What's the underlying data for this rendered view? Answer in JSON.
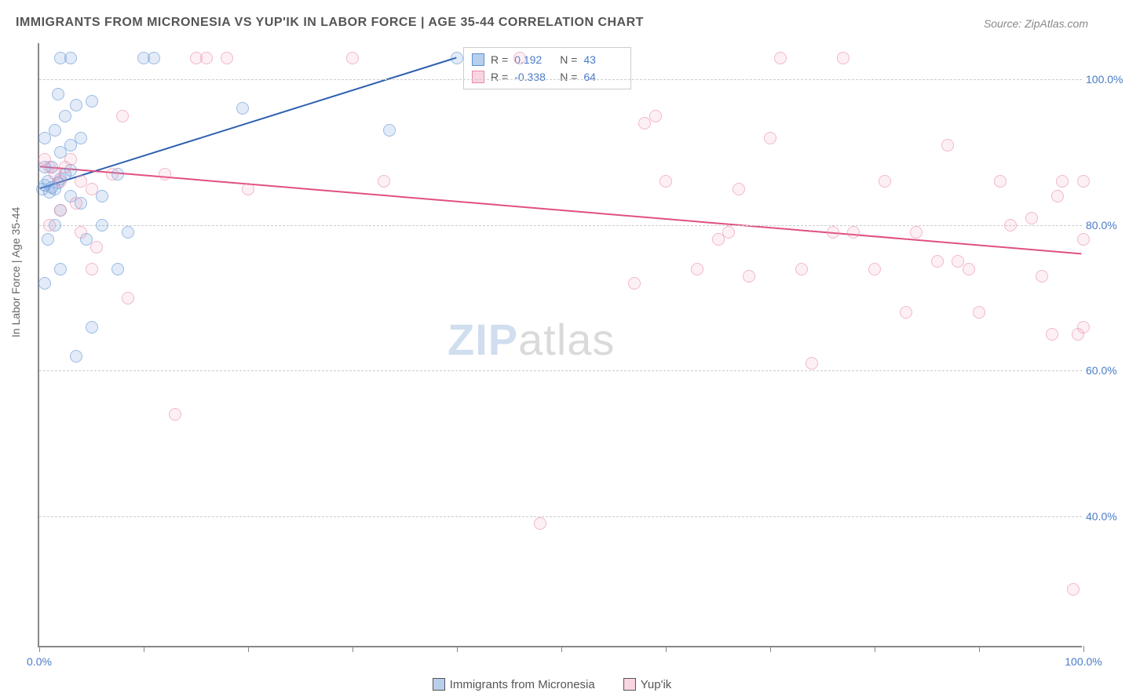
{
  "title": "IMMIGRANTS FROM MICRONESIA VS YUP'IK IN LABOR FORCE | AGE 35-44 CORRELATION CHART",
  "source": "Source: ZipAtlas.com",
  "ylabel": "In Labor Force | Age 35-44",
  "watermark": {
    "zip": "ZIP",
    "atlas": "atlas"
  },
  "chart": {
    "type": "scatter",
    "xlim": [
      0,
      100
    ],
    "ylim": [
      22,
      105
    ],
    "xticks": [
      0,
      10,
      20,
      30,
      40,
      50,
      60,
      70,
      80,
      90,
      100
    ],
    "xtick_labels_shown": {
      "0": "0.0%",
      "100": "100.0%"
    },
    "yticks": [
      40,
      60,
      80,
      100
    ],
    "ytick_labels": {
      "40": "40.0%",
      "60": "60.0%",
      "80": "80.0%",
      "100": "100.0%"
    },
    "grid_color": "#cccccc",
    "background_color": "#ffffff",
    "axis_color": "#888888",
    "tick_label_color": "#4a7bc8"
  },
  "series": [
    {
      "name": "Immigrants from Micronesia",
      "color_fill": "rgba(114,159,217,0.35)",
      "color_stroke": "#5a8fd6",
      "marker_radius": 8,
      "R": "0.192",
      "N": "43",
      "trend": {
        "x1": 0,
        "y1": 85,
        "x2": 40,
        "y2": 103,
        "color": "#2e5fb0",
        "width": 2
      },
      "points": [
        [
          0.3,
          85
        ],
        [
          0.5,
          85.5
        ],
        [
          0.8,
          86
        ],
        [
          1.0,
          84.5
        ],
        [
          1.2,
          85.2
        ],
        [
          1.5,
          85
        ],
        [
          1.8,
          85.8
        ],
        [
          2.0,
          86.3
        ],
        [
          0.5,
          88
        ],
        [
          1.2,
          88
        ],
        [
          2.5,
          87
        ],
        [
          3.0,
          87.5
        ],
        [
          2.0,
          90
        ],
        [
          3.0,
          91
        ],
        [
          4.0,
          92
        ],
        [
          1.5,
          93
        ],
        [
          2.5,
          95
        ],
        [
          3.5,
          96.5
        ],
        [
          5.0,
          97
        ],
        [
          1.8,
          98
        ],
        [
          3.0,
          103
        ],
        [
          2.0,
          103
        ],
        [
          10.0,
          103
        ],
        [
          11.0,
          103
        ],
        [
          19.5,
          96
        ],
        [
          2.0,
          82
        ],
        [
          3.0,
          84
        ],
        [
          4.0,
          83
        ],
        [
          6.0,
          84
        ],
        [
          7.5,
          87
        ],
        [
          8.5,
          79
        ],
        [
          0.5,
          92
        ],
        [
          1.5,
          80
        ],
        [
          0.8,
          78
        ],
        [
          2.0,
          74
        ],
        [
          0.5,
          72
        ],
        [
          4.5,
          78
        ],
        [
          6.0,
          80
        ],
        [
          7.5,
          74
        ],
        [
          5.0,
          66
        ],
        [
          3.5,
          62
        ],
        [
          33.5,
          93
        ],
        [
          40.0,
          103
        ]
      ]
    },
    {
      "name": "Yup'ik",
      "color_fill": "rgba(240,150,180,0.25)",
      "color_stroke": "#e88aa8",
      "marker_radius": 8,
      "R": "-0.338",
      "N": "64",
      "trend": {
        "x1": 0,
        "y1": 88,
        "x2": 100,
        "y2": 76,
        "color": "#e05080",
        "width": 2
      },
      "points": [
        [
          0.5,
          89
        ],
        [
          1.0,
          88
        ],
        [
          1.5,
          87
        ],
        [
          2.0,
          86
        ],
        [
          2.5,
          88
        ],
        [
          3.0,
          89
        ],
        [
          4.0,
          86
        ],
        [
          5.0,
          85
        ],
        [
          2.0,
          82
        ],
        [
          3.5,
          83
        ],
        [
          1.0,
          80
        ],
        [
          4.0,
          79
        ],
        [
          5.5,
          77
        ],
        [
          7.0,
          87
        ],
        [
          8.0,
          95
        ],
        [
          12.0,
          87
        ],
        [
          15.0,
          103
        ],
        [
          16.0,
          103
        ],
        [
          18.0,
          103
        ],
        [
          20.0,
          85
        ],
        [
          30.0,
          103
        ],
        [
          33.0,
          86
        ],
        [
          46.0,
          103
        ],
        [
          48.0,
          39
        ],
        [
          13.0,
          54
        ],
        [
          8.5,
          70
        ],
        [
          5.0,
          74
        ],
        [
          57.0,
          72
        ],
        [
          58.0,
          94
        ],
        [
          59.0,
          95
        ],
        [
          60.0,
          86
        ],
        [
          63.0,
          74
        ],
        [
          65.0,
          78
        ],
        [
          66.0,
          79
        ],
        [
          67.0,
          85
        ],
        [
          68.0,
          73
        ],
        [
          70.0,
          92
        ],
        [
          71.0,
          103
        ],
        [
          73.0,
          74
        ],
        [
          74.0,
          61
        ],
        [
          76.0,
          79
        ],
        [
          77.0,
          103
        ],
        [
          78.0,
          79
        ],
        [
          80.0,
          74
        ],
        [
          81.0,
          86
        ],
        [
          83.0,
          68
        ],
        [
          84.0,
          79
        ],
        [
          86.0,
          75
        ],
        [
          87.0,
          91
        ],
        [
          88.0,
          75
        ],
        [
          89.0,
          74
        ],
        [
          90.0,
          68
        ],
        [
          92.0,
          86
        ],
        [
          93.0,
          80
        ],
        [
          95.0,
          81
        ],
        [
          96.0,
          73
        ],
        [
          97.0,
          65
        ],
        [
          97.5,
          84
        ],
        [
          98.0,
          86
        ],
        [
          99.0,
          30
        ],
        [
          99.5,
          65
        ],
        [
          100.0,
          66
        ],
        [
          100.0,
          78
        ],
        [
          100.0,
          86
        ]
      ]
    }
  ],
  "legend": {
    "items": [
      {
        "label": "Immigrants from Micronesia",
        "swatch": 0
      },
      {
        "label": "Yup'ik",
        "swatch": 1
      }
    ]
  },
  "stats_box": {
    "rows": [
      {
        "swatch": 0,
        "R_label": "R =",
        "R_val": "0.192",
        "N_label": "N =",
        "N_val": "43"
      },
      {
        "swatch": 1,
        "R_label": "R =",
        "R_val": "-0.338",
        "N_label": "N =",
        "N_val": "64"
      }
    ]
  }
}
